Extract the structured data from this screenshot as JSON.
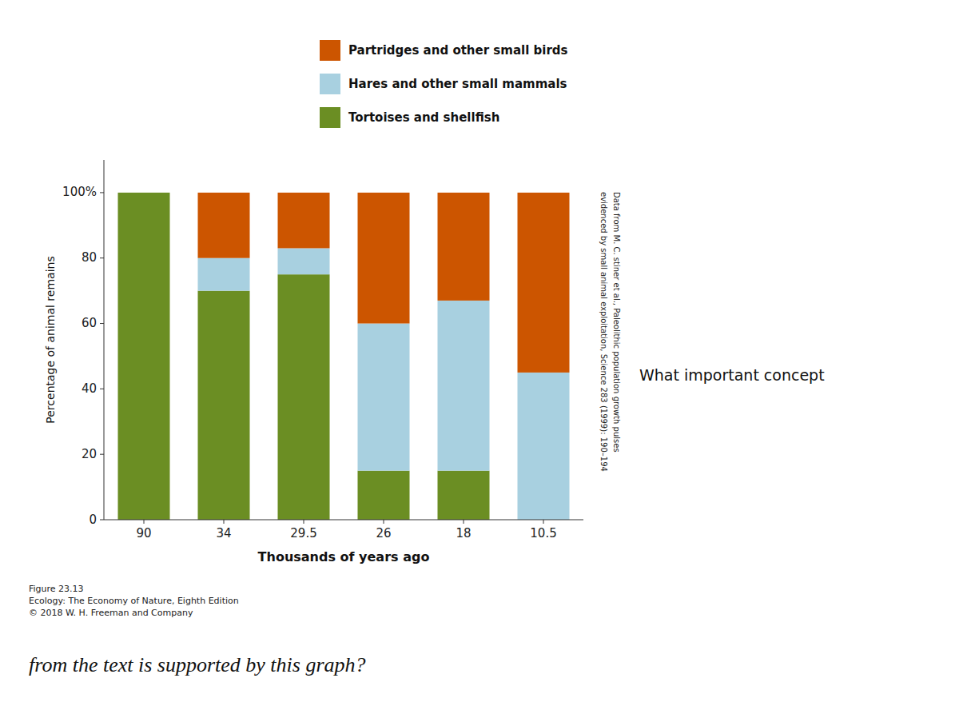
{
  "chart_data": {
    "type": "bar",
    "stacked": true,
    "categories": [
      "90",
      "34",
      "29.5",
      "26",
      "18",
      "10.5"
    ],
    "series": [
      {
        "name": "Tortoises and shellfish",
        "color": "#6B8E23",
        "values": [
          100,
          70,
          75,
          15,
          15,
          0
        ]
      },
      {
        "name": "Hares and other small mammals",
        "color": "#A8D0E0",
        "values": [
          0,
          10,
          8,
          45,
          52,
          45
        ]
      },
      {
        "name": "Partridges and other small birds",
        "color": "#CC5500",
        "values": [
          0,
          20,
          17,
          40,
          33,
          55
        ]
      }
    ],
    "x_label": "Thousands of years ago",
    "y_label": "Percentage of animal remains",
    "ylim": [
      0,
      110
    ],
    "yticks": [
      0,
      20,
      40,
      60,
      80,
      {
        "value": 100,
        "label": "100%"
      }
    ],
    "grid": false,
    "legend": "top",
    "annotations": [
      "Data from M. C. stiner et al., Paleolithic population growth pulses",
      "evidenced by small animal exploitation, Science 283 (1999): 190–194",
      "What important concept",
      "Figure 23.13\nEcology: The Economy of Nature, Eighth Edition\n© 2018 W. H. Freeman and Company",
      "from the text is supported by this graph?"
    ]
  }
}
